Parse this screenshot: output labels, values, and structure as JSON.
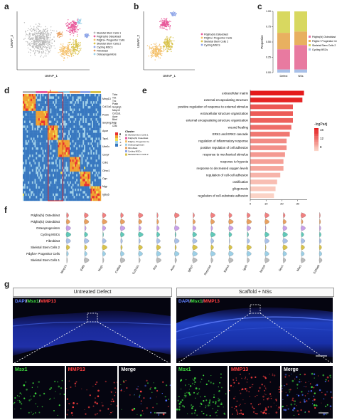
{
  "panels": {
    "a": {
      "label": "a",
      "xlabel": "UMAP_1",
      "ylabel": "UMAP_2",
      "legend": [
        "Skeletal Stem Cells 1",
        "Pdgfra(hi) Osteoblast",
        "Pdgfra+ Progenitor Cells",
        "Skeletal Stem Cells 2",
        "Cycling MSCs",
        "Fibroblast",
        "Osteoprogenitors"
      ],
      "colors": [
        "#bbbbbb",
        "#e85a9b",
        "#f4c06a",
        "#d8c24a",
        "#8fa6e8",
        "#e8a060",
        "#9ccfe6"
      ]
    },
    "b": {
      "label": "b",
      "xlabel": "UMAP_1",
      "ylabel": "UMAP_2",
      "legend": [
        "Pdgfra(hi) Osteoblast",
        "Pdgfra+ Progenitor Cells",
        "Skeletal Stem Cells 2",
        "Cycling MSCs"
      ],
      "colors": [
        "#e85a9b",
        "#f4c06a",
        "#d8c24a",
        "#8fa6e8"
      ]
    },
    "c": {
      "label": "c",
      "ylabel": "Proportion",
      "legend": [
        "Pdgfra(hi) Osteoblast",
        "Pdgfra+ Progenitor Cells",
        "Skeletal Stem Cells 2",
        "Cycling MSCs"
      ],
      "colors": [
        "#e87aa0",
        "#e8b060",
        "#d8d860",
        "#a8c0e8"
      ]
    },
    "d": {
      "label": "d",
      "genes_top": [
        "Tuba",
        "Tbx",
        "Tnc",
        "Postn",
        "Serping1",
        "Mmp13",
        "Col11a1",
        "Apoe",
        "Bdnf",
        "Mgp",
        "Ccl6"
      ],
      "genes_left": [
        "Mmp13",
        "Col11a1",
        "Postn",
        "Serping1",
        "Apoe",
        "Tspr1",
        "Ube2c",
        "Cenpf",
        "Cdk1",
        "Cthrc1",
        "Ogn",
        "Mgp",
        "Igfbp5"
      ],
      "legend_title": "Cluster",
      "legend": [
        "Skeletal Stem Cells 1",
        "Pdgfra(hi) Osteoblast",
        "Pdgfra+ Progenitor Cells",
        "Osteoprogenitors",
        "Fibroblast",
        "Cycling MSCs",
        "Skeletal Stem Cells 2"
      ],
      "cluster_colors": [
        "#bbbbbb",
        "#e85a9b",
        "#f4c06a",
        "#9ccfe6",
        "#e8a060",
        "#8fa6e8",
        "#d8c24a"
      ],
      "scale": [
        "2",
        "1",
        "0",
        "-1",
        "-2"
      ]
    },
    "e": {
      "label": "e",
      "legend_title": "-logPadj",
      "legend_ticks": [
        "16",
        "12",
        "8"
      ]
    },
    "f": {
      "label": "f",
      "rows": [
        "Pdgfra(hi) Osteoblast",
        "Pdgfra(lo) Osteoblast",
        "Osteoprogenitors",
        "Cycling MSCs",
        "Fibroblast",
        "Skeletal Stem Cells 2",
        "Pdgfra+ Progenitor Cells",
        "Skeletal Stem Cells 1"
      ],
      "genes": [
        "Mmp13",
        "Edil3",
        "Nog1",
        "Col8a5",
        "Col11a1",
        "Ibsp",
        "Acan",
        "Igfbp7",
        "Serpine2",
        "Ephx3",
        "Igsf3",
        "Ntmp3",
        "Gpc1",
        "Msx1",
        "S100a6"
      ],
      "row_colors": [
        "#f08080",
        "#e8a060",
        "#c8a0e8",
        "#60c8b8",
        "#a8c0e8",
        "#d8c24a",
        "#9ccfe6",
        "#bbbbbb"
      ]
    },
    "g": {
      "label": "g",
      "left_title": "Untreated Defect",
      "right_title": "Scaffold + NSs",
      "stain_dapi": "DAPI",
      "stain_msx1": "Msx1",
      "stain_mmp13": "MMP13",
      "sep": "/",
      "tiles": [
        "Msx1",
        "MMP13",
        "Merge"
      ]
    }
  },
  "chart_data": [
    {
      "type": "bar",
      "panel": "c",
      "categories": [
        "Defect",
        "NSs"
      ],
      "series": [
        {
          "name": "Pdgfra(hi) Osteoblast",
          "values": [
            0.33,
            0.4
          ]
        },
        {
          "name": "Pdgfra+ Progenitor Cells",
          "values": [
            0.27,
            0.22
          ]
        },
        {
          "name": "Skeletal Stem Cells 2",
          "values": [
            0.35,
            0.33
          ]
        },
        {
          "name": "Cycling MSCs",
          "values": [
            0.05,
            0.05
          ]
        }
      ],
      "ylabel": "Proportion",
      "ylim": [
        0,
        1
      ],
      "yticks": [
        "0.00",
        "0.25",
        "0.50",
        "0.75",
        "1.00"
      ]
    },
    {
      "type": "bar",
      "panel": "e",
      "orientation": "horizontal",
      "categories": [
        "extracellular matrix",
        "external encapsulating structure",
        "positive regulation of response to external stimulus",
        "extracellular structure organization",
        "external encapsulating structure organization",
        "wound healing",
        "ERK1 and ERK2 cascade",
        "regulation of inflammatory response",
        "positive regulation of cell adhesion",
        "response to mechanical stimulus",
        "response to hypoxia",
        "response to decreased oxygen levels",
        "regulation of cell-cell adhesion",
        "ossification",
        "gliogenesis",
        "regulation of cell-substrate adhesion"
      ],
      "values": [
        34,
        33,
        27,
        27,
        27,
        26,
        25,
        23,
        23,
        22,
        21,
        21,
        19,
        17,
        16,
        15
      ],
      "color_values": [
        17,
        16.5,
        14,
        13.8,
        13.6,
        13,
        12.5,
        11.5,
        11.3,
        10.8,
        10.5,
        10.2,
        9.5,
        9,
        8.5,
        8
      ],
      "xticks": [
        "0",
        "10",
        "20",
        "30"
      ],
      "xlim": [
        0,
        36
      ]
    }
  ]
}
